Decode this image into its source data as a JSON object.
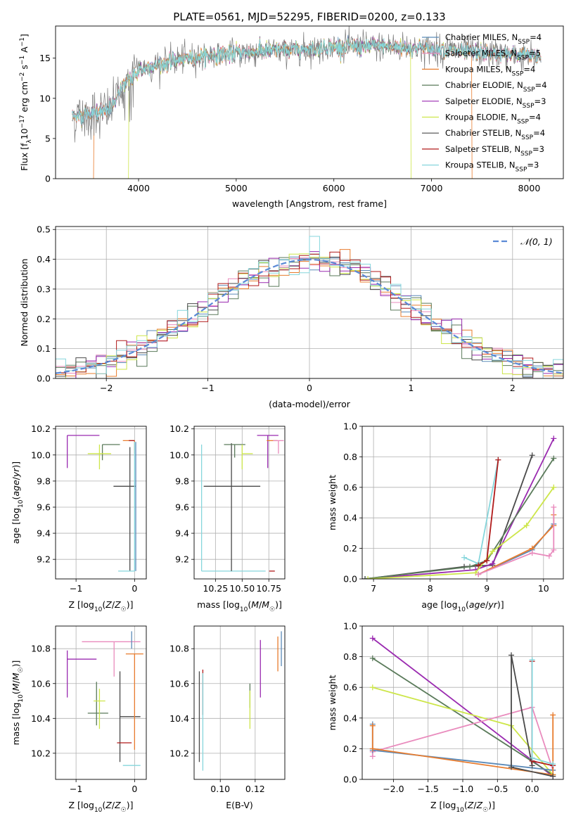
{
  "suptitle": "PLATE=0561, MJD=52295, FIBERID=0200, z=0.133",
  "colors": {
    "chabrier_miles": "#5b8ab8",
    "salpeter_miles": "#e98bbd",
    "kroupa_miles": "#e87c2e",
    "chabrier_elodie": "#5a7a5a",
    "salpeter_elodie": "#9a2ab0",
    "kroupa_elodie": "#cde64a",
    "chabrier_stelib": "#4a4a4a",
    "salpeter_stelib": "#b01a1a",
    "kroupa_stelib": "#86d6dc",
    "gauss": "#5b8ad6"
  },
  "chart_data": [
    {
      "id": "spectrum",
      "type": "line",
      "xlabel": "wavelength [Angstrom, rest frame]",
      "ylabel": "Flux [f_λ10^-17 erg cm^-2 s^-1 A^-1]",
      "xlim": [
        3150,
        8350
      ],
      "ylim": [
        0,
        19
      ],
      "xticks": [
        4000,
        5000,
        6000,
        7000,
        8000
      ],
      "yticks": [
        0,
        5,
        10,
        15
      ],
      "grid": false,
      "legend_position": "right",
      "series": [
        {
          "name": "Chabrier MILES, N_SSP=4",
          "color": "chabrier_miles"
        },
        {
          "name": "Salpeter MILES, N_SSP=5",
          "color": "salpeter_miles"
        },
        {
          "name": "Kroupa MILES, N_SSP=4",
          "color": "kroupa_miles"
        },
        {
          "name": "Chabrier ELODIE, N_SSP=4",
          "color": "chabrier_elodie"
        },
        {
          "name": "Salpeter ELODIE, N_SSP=3",
          "color": "salpeter_elodie"
        },
        {
          "name": "Kroupa ELODIE, N_SSP=4",
          "color": "kroupa_elodie"
        },
        {
          "name": "Chabrier STELIB, N_SSP=4",
          "color": "chabrier_stelib"
        },
        {
          "name": "Salpeter STELIB, N_SSP=3",
          "color": "salpeter_stelib"
        },
        {
          "name": "Kroupa STELIB, N_SSP=3",
          "color": "kroupa_stelib"
        }
      ],
      "continuum": {
        "x": [
          3350,
          3500,
          3700,
          3900,
          4000,
          4200,
          4400,
          4700,
          5000,
          5300,
          5600,
          6000,
          6400,
          6800,
          7200,
          7600,
          8000,
          8100
        ],
        "y": [
          7.8,
          8.0,
          8.5,
          12.5,
          13.5,
          14.2,
          14.8,
          15.3,
          15.6,
          15.9,
          16.0,
          16.4,
          16.5,
          16.3,
          16.0,
          15.6,
          15.3,
          15.2
        ]
      },
      "data_range": [
        3320,
        8120
      ],
      "model_ranges": [
        {
          "color": "kroupa_miles",
          "range": [
            3540,
            7410
          ]
        },
        {
          "color": "kroupa_elodie",
          "range": [
            3900,
            6790
          ]
        }
      ]
    },
    {
      "id": "residuals",
      "type": "step",
      "xlabel": "(data-model)/error",
      "ylabel": "Normed distribution",
      "xlim": [
        -2.5,
        2.5
      ],
      "ylim": [
        0,
        0.51
      ],
      "xticks": [
        -2,
        -1,
        0,
        1,
        2
      ],
      "yticks": [
        0.0,
        0.1,
        0.2,
        0.3,
        0.4,
        0.5
      ],
      "grid": true,
      "legend": "𝒩(0, 1)",
      "legend_position": "top-right",
      "bin_width": 0.1
    },
    {
      "id": "age_vs_Z",
      "type": "errorbar",
      "xlabel": "Z [log10(Z/Z☉)]",
      "ylabel": "age [log10(age/yr)]",
      "xlim": [
        -1.35,
        0.2
      ],
      "ylim": [
        9.05,
        10.22
      ],
      "xticks": [
        -1,
        0
      ],
      "yticks": [
        9.2,
        9.4,
        9.6,
        9.8,
        10.0,
        10.2
      ],
      "points": [
        {
          "color": "salpeter_elodie",
          "x": -1.15,
          "xerr": [
            0.0,
            0.55
          ],
          "y": 10.15,
          "yerr": [
            0.25,
            0.0
          ]
        },
        {
          "color": "chabrier_elodie",
          "x": -0.55,
          "xerr": [
            0.0,
            0.3
          ],
          "y": 10.08,
          "yerr": [
            0.12,
            0.0
          ]
        },
        {
          "color": "kroupa_elodie",
          "x": -0.6,
          "xerr": [
            0.2,
            0.2
          ],
          "y": 10.01,
          "yerr": [
            0.12,
            0.07
          ]
        },
        {
          "color": "chabrier_stelib",
          "x": -0.08,
          "xerr": [
            0.28,
            0.1
          ],
          "y": 9.76,
          "yerr": [
            0.65,
            0.3
          ]
        },
        {
          "color": "kroupa_miles",
          "x": 0.0,
          "xerr": [
            0.2,
            0.0
          ],
          "y": 10.11,
          "yerr": [
            0.1,
            0.0
          ]
        },
        {
          "color": "chabrier_miles",
          "x": 0.02,
          "xerr": [
            0.0,
            0.0
          ],
          "y": 10.1,
          "yerr": [
            0.99,
            0.0
          ]
        },
        {
          "color": "kroupa_stelib",
          "x": 0.0,
          "xerr": [
            0.28,
            0.0
          ],
          "y": 9.11,
          "yerr": [
            0.0,
            0.99
          ]
        },
        {
          "color": "salpeter_stelib",
          "x": -0.05,
          "xerr": [
            0.0,
            0.0
          ],
          "y": 10.11,
          "yerr": [
            0.0,
            0.0
          ]
        }
      ]
    },
    {
      "id": "age_vs_mass",
      "type": "errorbar",
      "xlabel": "mass [log10(M/M☉)]",
      "ylabel": "",
      "xlim": [
        10.05,
        10.9
      ],
      "ylim": [
        9.05,
        10.22
      ],
      "xticks": [
        10.25,
        10.5,
        10.75
      ],
      "xticklabels": [
        "10.25",
        "10.50",
        "10.75"
      ],
      "yticks": [
        9.2,
        9.4,
        9.6,
        9.8,
        10.0,
        10.2
      ],
      "points": [
        {
          "color": "kroupa_stelib",
          "x": 10.12,
          "xerr": [
            0.0,
            0.6
          ],
          "y": 9.11,
          "yerr": [
            0.0,
            0.97
          ]
        },
        {
          "color": "chabrier_stelib",
          "x": 10.4,
          "xerr": [
            0.26,
            0.27
          ],
          "y": 9.76,
          "yerr": [
            0.65,
            0.33
          ]
        },
        {
          "color": "chabrier_elodie",
          "x": 10.43,
          "xerr": [
            0.1,
            0.1
          ],
          "y": 10.08,
          "yerr": [
            0.1,
            0.0
          ]
        },
        {
          "color": "kroupa_elodie",
          "x": 10.5,
          "xerr": [
            0.0,
            0.1
          ],
          "y": 10.01,
          "yerr": [
            0.12,
            0.07
          ]
        },
        {
          "color": "salpeter_elodie",
          "x": 10.74,
          "xerr": [
            0.1,
            0.1
          ],
          "y": 10.15,
          "yerr": [
            0.25,
            0.0
          ]
        },
        {
          "color": "kroupa_miles",
          "x": 10.78,
          "xerr": [
            0.05,
            0.05
          ],
          "y": 10.11,
          "yerr": [
            0.0,
            0.0
          ]
        },
        {
          "color": "salpeter_miles",
          "x": 10.84,
          "xerr": [
            0.05,
            0.05
          ],
          "y": 10.11,
          "yerr": [
            0.1,
            0.0
          ]
        },
        {
          "color": "salpeter_stelib",
          "x": 10.78,
          "xerr": [
            0.0,
            0.0
          ],
          "y": 9.11,
          "yerr": [
            0.0,
            0.0
          ]
        }
      ]
    },
    {
      "id": "weight_vs_age",
      "type": "line",
      "xlabel": "age [log10(age/yr)]",
      "ylabel": "mass weight",
      "xlim": [
        6.8,
        10.35
      ],
      "ylim": [
        0,
        1.0
      ],
      "xticks": [
        7,
        8,
        9,
        10
      ],
      "yticks": [
        0.0,
        0.2,
        0.4,
        0.6,
        0.8,
        1.0
      ],
      "grid": true,
      "series": [
        {
          "color": "chabrier_stelib",
          "x": [
            6.85,
            8.6,
            9.1,
            9.8
          ],
          "y": [
            0.0,
            0.08,
            0.09,
            0.81
          ]
        },
        {
          "color": "salpeter_elodie",
          "x": [
            6.85,
            8.8,
            9.1,
            10.18
          ],
          "y": [
            0.0,
            0.06,
            0.1,
            0.92
          ]
        },
        {
          "color": "chabrier_elodie",
          "x": [
            6.85,
            8.7,
            9.0,
            10.18
          ],
          "y": [
            0.0,
            0.08,
            0.12,
            0.79
          ]
        },
        {
          "color": "kroupa_elodie",
          "x": [
            6.9,
            8.8,
            9.1,
            9.7,
            10.18
          ],
          "y": [
            0.0,
            0.04,
            0.18,
            0.35,
            0.6
          ]
        },
        {
          "color": "kroupa_stelib",
          "x": [
            8.6,
            8.85,
            9.2
          ],
          "y": [
            0.14,
            0.1,
            0.78
          ]
        },
        {
          "color": "salpeter_stelib",
          "x": [
            8.85,
            9.0,
            9.2
          ],
          "y": [
            0.09,
            0.12,
            0.78
          ]
        },
        {
          "color": "chabrier_miles",
          "x": [
            8.85,
            9.8,
            10.18
          ],
          "y": [
            0.03,
            0.19,
            0.36
          ]
        },
        {
          "color": "kroupa_miles",
          "x": [
            8.85,
            9.8,
            10.18,
            10.18
          ],
          "y": [
            0.03,
            0.2,
            0.35,
            0.42
          ]
        },
        {
          "color": "salpeter_miles",
          "x": [
            8.85,
            9.8,
            10.1,
            10.18,
            10.18
          ],
          "y": [
            0.03,
            0.17,
            0.15,
            0.19,
            0.47
          ]
        }
      ]
    },
    {
      "id": "mass_vs_Z",
      "type": "errorbar",
      "xlabel": "Z [log10(Z/Z☉)]",
      "ylabel": "mass [log10(M/M☉)]",
      "xlim": [
        -1.35,
        0.2
      ],
      "ylim": [
        10.05,
        10.93
      ],
      "xticks": [
        -1,
        0
      ],
      "yticks": [
        10.2,
        10.4,
        10.6,
        10.8
      ],
      "points": [
        {
          "color": "salpeter_elodie",
          "x": -1.15,
          "xerr": [
            0.0,
            0.5
          ],
          "y": 10.74,
          "yerr": [
            0.22,
            0.05
          ]
        },
        {
          "color": "salpeter_miles",
          "x": -0.35,
          "xerr": [
            0.55,
            0.45
          ],
          "y": 10.84,
          "yerr": [
            0.2,
            0.0
          ]
        },
        {
          "color": "chabrier_elodie",
          "x": -0.65,
          "xerr": [
            0.15,
            0.2
          ],
          "y": 10.43,
          "yerr": [
            0.07,
            0.18
          ]
        },
        {
          "color": "kroupa_elodie",
          "x": -0.6,
          "xerr": [
            0.1,
            0.1
          ],
          "y": 10.5,
          "yerr": [
            0.16,
            0.07
          ]
        },
        {
          "color": "chabrier_stelib",
          "x": -0.25,
          "xerr": [
            0.0,
            0.35
          ],
          "y": 10.41,
          "yerr": [
            0.26,
            0.26
          ]
        },
        {
          "color": "salpeter_stelib",
          "x": -0.05,
          "xerr": [
            0.25,
            0.0
          ],
          "y": 10.26,
          "yerr": [
            0.0,
            0.0
          ]
        },
        {
          "color": "kroupa_miles",
          "x": 0.0,
          "xerr": [
            0.15,
            0.15
          ],
          "y": 10.77,
          "yerr": [
            0.55,
            0.0
          ]
        },
        {
          "color": "chabrier_miles",
          "x": -0.05,
          "xerr": [
            0.0,
            0.0
          ],
          "y": 10.8,
          "yerr": [
            0.0,
            0.1
          ]
        },
        {
          "color": "kroupa_stelib",
          "x": -0.05,
          "xerr": [
            0.15,
            0.15
          ],
          "y": 10.13,
          "yerr": [
            0.0,
            0.0
          ]
        }
      ]
    },
    {
      "id": "mass_vs_EBV",
      "type": "errorbar",
      "xlabel": "E(B-V)",
      "ylabel": "",
      "xlim": [
        0.085,
        0.137
      ],
      "ylim": [
        10.05,
        10.93
      ],
      "xticks": [
        0.1,
        0.12
      ],
      "xticklabels": [
        "0.10",
        "0.12"
      ],
      "yticks": [
        10.2,
        10.4,
        10.6,
        10.8
      ],
      "points": [
        {
          "color": "chabrier_stelib",
          "x": 0.088,
          "y": 10.41,
          "yerr": [
            0.26,
            0.26
          ]
        },
        {
          "color": "salpeter_stelib",
          "x": 0.09,
          "y": 10.42,
          "yerr": [
            0.0,
            0.26
          ]
        },
        {
          "color": "kroupa_stelib",
          "x": 0.09,
          "y": 10.38,
          "yerr": [
            0.28,
            0.28
          ]
        },
        {
          "color": "chabrier_elodie",
          "x": 0.117,
          "y": 10.46,
          "yerr": [
            0.0,
            0.14
          ]
        },
        {
          "color": "kroupa_elodie",
          "x": 0.117,
          "y": 10.46,
          "yerr": [
            0.12,
            0.1
          ]
        },
        {
          "color": "salpeter_elodie",
          "x": 0.123,
          "y": 10.68,
          "yerr": [
            0.16,
            0.17
          ]
        },
        {
          "color": "kroupa_miles",
          "x": 0.133,
          "y": 10.77,
          "yerr": [
            0.1,
            0.1
          ]
        },
        {
          "color": "chabrier_miles",
          "x": 0.135,
          "y": 10.8,
          "yerr": [
            0.1,
            0.1
          ]
        }
      ]
    },
    {
      "id": "weight_vs_Z",
      "type": "line",
      "xlabel": "Z [log10(Z/Z☉)]",
      "ylabel": "mass weight",
      "xlim": [
        -2.45,
        0.45
      ],
      "ylim": [
        0,
        1.0
      ],
      "xticks": [
        -2.0,
        -1.5,
        -1.0,
        -0.5,
        0.0
      ],
      "xticklabels": [
        "−2.0",
        "−1.5",
        "−1.0",
        "−0.5",
        "0.0"
      ],
      "yticks": [
        0.0,
        0.2,
        0.4,
        0.6,
        0.8,
        1.0
      ],
      "grid": true,
      "series": [
        {
          "color": "salpeter_elodie",
          "x": [
            -2.3,
            0.3
          ],
          "y": [
            0.92,
            0.02
          ]
        },
        {
          "color": "chabrier_elodie",
          "x": [
            -2.3,
            0.3
          ],
          "y": [
            0.79,
            0.03
          ]
        },
        {
          "color": "kroupa_elodie",
          "x": [
            -2.3,
            -0.3,
            0.3
          ],
          "y": [
            0.6,
            0.35,
            0.03
          ]
        },
        {
          "color": "salpeter_miles",
          "x": [
            -2.3,
            -2.3,
            0.0,
            0.3
          ],
          "y": [
            0.15,
            0.18,
            0.47,
            0.06
          ]
        },
        {
          "color": "chabrier_miles",
          "x": [
            -2.3,
            -2.3,
            0.3
          ],
          "y": [
            0.36,
            0.19,
            0.06
          ]
        },
        {
          "color": "kroupa_miles",
          "x": [
            -2.3,
            -2.3,
            0.3,
            0.3
          ],
          "y": [
            0.35,
            0.2,
            0.03,
            0.42
          ]
        },
        {
          "color": "chabrier_stelib",
          "x": [
            0.3,
            -0.3,
            -0.3,
            0.0
          ],
          "y": [
            0.02,
            0.08,
            0.81,
            0.09
          ]
        },
        {
          "color": "salpeter_stelib",
          "x": [
            0.0,
            0.0,
            0.3
          ],
          "y": [
            0.77,
            0.12,
            0.09
          ]
        },
        {
          "color": "kroupa_stelib",
          "x": [
            0.0,
            0.0,
            0.3
          ],
          "y": [
            0.78,
            0.14,
            0.1
          ]
        }
      ]
    }
  ]
}
